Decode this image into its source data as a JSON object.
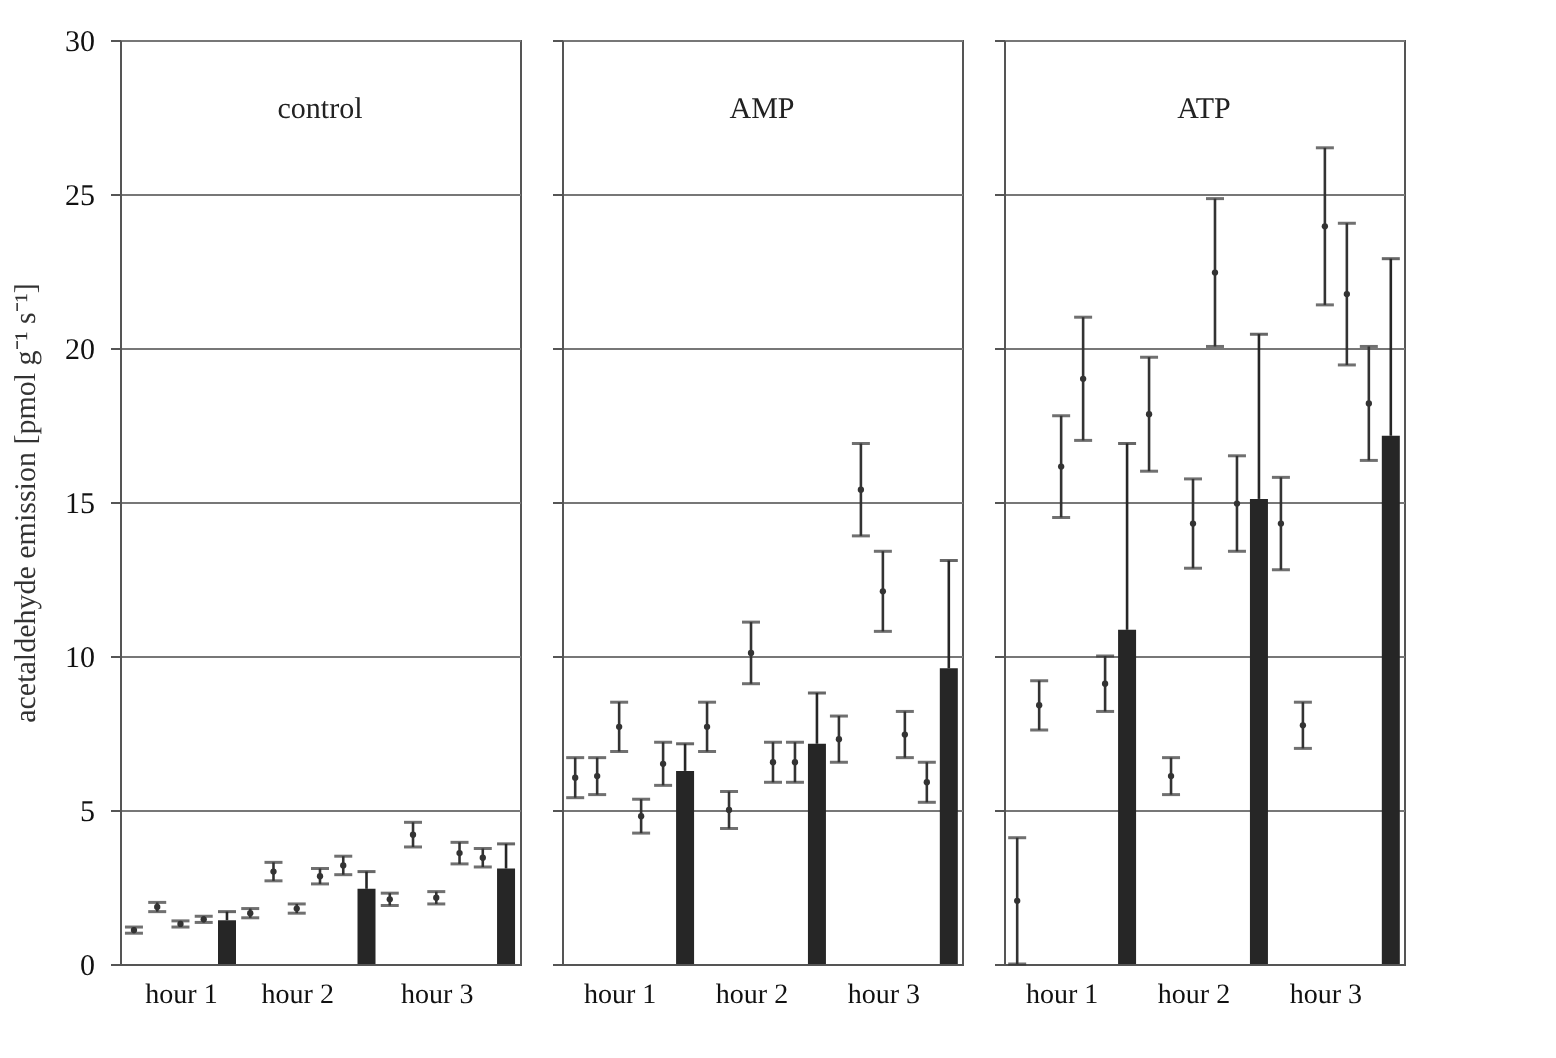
{
  "chart_data": [
    {
      "type": "bar",
      "title": "control",
      "ylabel": "acetaldehyde emission [pmol g⁻¹ s⁻¹]",
      "categories": [
        null,
        null,
        "hour 1",
        null,
        null,
        null,
        null,
        "hour 2",
        null,
        null,
        null,
        null,
        null,
        "hour 3",
        null,
        null,
        null
      ],
      "ylim": [
        0,
        30
      ],
      "yticks": [
        0,
        5,
        10,
        15,
        20,
        25,
        30
      ],
      "grid": "y",
      "series": [
        {
          "type": "bar",
          "color": "#262626",
          "values": [
            null,
            null,
            null,
            null,
            1.42,
            null,
            null,
            null,
            null,
            null,
            2.44,
            null,
            null,
            null,
            null,
            null,
            3.1
          ],
          "errors": [
            null,
            null,
            null,
            null,
            [
              1.42,
              1.7
            ],
            null,
            null,
            null,
            null,
            null,
            [
              2.44,
              3.0
            ],
            null,
            null,
            null,
            null,
            null,
            [
              3.1,
              3.9
            ]
          ]
        },
        {
          "type": "scatter",
          "marker": "circle",
          "color": "#333333",
          "values": [
            1.1,
            1.85,
            1.3,
            1.45,
            null,
            1.65,
            3.0,
            1.8,
            2.85,
            3.2,
            null,
            2.1,
            4.2,
            2.15,
            3.6,
            3.45,
            null
          ],
          "errors": [
            0.1,
            0.15,
            0.1,
            0.1,
            null,
            0.15,
            0.3,
            0.15,
            0.25,
            0.3,
            null,
            0.2,
            0.4,
            0.2,
            0.35,
            0.3,
            null
          ]
        }
      ]
    },
    {
      "type": "bar",
      "title": "AMP",
      "categories": [
        null,
        null,
        "hour 1",
        null,
        null,
        null,
        null,
        null,
        "hour 2",
        null,
        null,
        null,
        null,
        null,
        "hour 3",
        null,
        null,
        null
      ],
      "ylim": [
        0,
        30
      ],
      "yticks": [
        0,
        5,
        10,
        15,
        20,
        25,
        30
      ],
      "grid": "y",
      "tick_labels": "x",
      "series": [
        {
          "type": "bar",
          "color": "#262626",
          "values": [
            null,
            null,
            null,
            null,
            null,
            6.27,
            null,
            null,
            null,
            null,
            null,
            7.15,
            null,
            null,
            null,
            null,
            null,
            9.6
          ],
          "errors": [
            null,
            null,
            null,
            null,
            null,
            [
              6.27,
              7.15
            ],
            null,
            null,
            null,
            null,
            null,
            [
              7.15,
              8.8
            ],
            null,
            null,
            null,
            null,
            null,
            [
              9.6,
              13.1
            ]
          ]
        },
        {
          "type": "scatter",
          "marker": "circle",
          "color": "#333333",
          "values": [
            6.05,
            6.1,
            7.7,
            4.8,
            6.5,
            null,
            7.7,
            5.0,
            10.1,
            6.55,
            6.55,
            null,
            7.3,
            15.4,
            12.1,
            7.45,
            5.9,
            null
          ],
          "errors": [
            0.65,
            0.6,
            0.8,
            0.55,
            0.7,
            null,
            0.8,
            0.6,
            1.0,
            0.65,
            0.65,
            null,
            0.75,
            1.5,
            1.3,
            0.75,
            0.65,
            null
          ]
        }
      ]
    },
    {
      "type": "bar",
      "title": "ATP",
      "categories": [
        null,
        null,
        "hour 1",
        null,
        null,
        null,
        null,
        null,
        "hour 2",
        null,
        null,
        null,
        null,
        null,
        "hour 3",
        null,
        null,
        null
      ],
      "ylim": [
        0,
        30
      ],
      "yticks": [
        0,
        5,
        10,
        15,
        20,
        25,
        30
      ],
      "grid": "y",
      "tick_labels": "x",
      "series": [
        {
          "type": "bar",
          "color": "#262626",
          "values": [
            null,
            null,
            null,
            null,
            null,
            10.85,
            null,
            null,
            null,
            null,
            null,
            15.1,
            null,
            null,
            null,
            null,
            null,
            17.15
          ],
          "errors": [
            null,
            null,
            null,
            null,
            null,
            [
              10.85,
              16.9
            ],
            null,
            null,
            null,
            null,
            null,
            [
              15.1,
              20.45
            ],
            null,
            null,
            null,
            null,
            null,
            [
              17.15,
              22.9
            ]
          ]
        },
        {
          "type": "scatter",
          "marker": "circle",
          "color": "#333333",
          "values": [
            2.05,
            8.4,
            16.15,
            19.0,
            9.1,
            null,
            17.85,
            6.1,
            14.3,
            22.45,
            14.95,
            null,
            14.3,
            7.75,
            23.95,
            21.75,
            18.2,
            null
          ],
          "errors": [
            2.05,
            0.8,
            1.65,
            2.0,
            0.9,
            null,
            1.85,
            0.6,
            1.45,
            2.4,
            1.55,
            null,
            1.5,
            0.75,
            2.55,
            2.3,
            1.85,
            null
          ]
        }
      ]
    }
  ]
}
